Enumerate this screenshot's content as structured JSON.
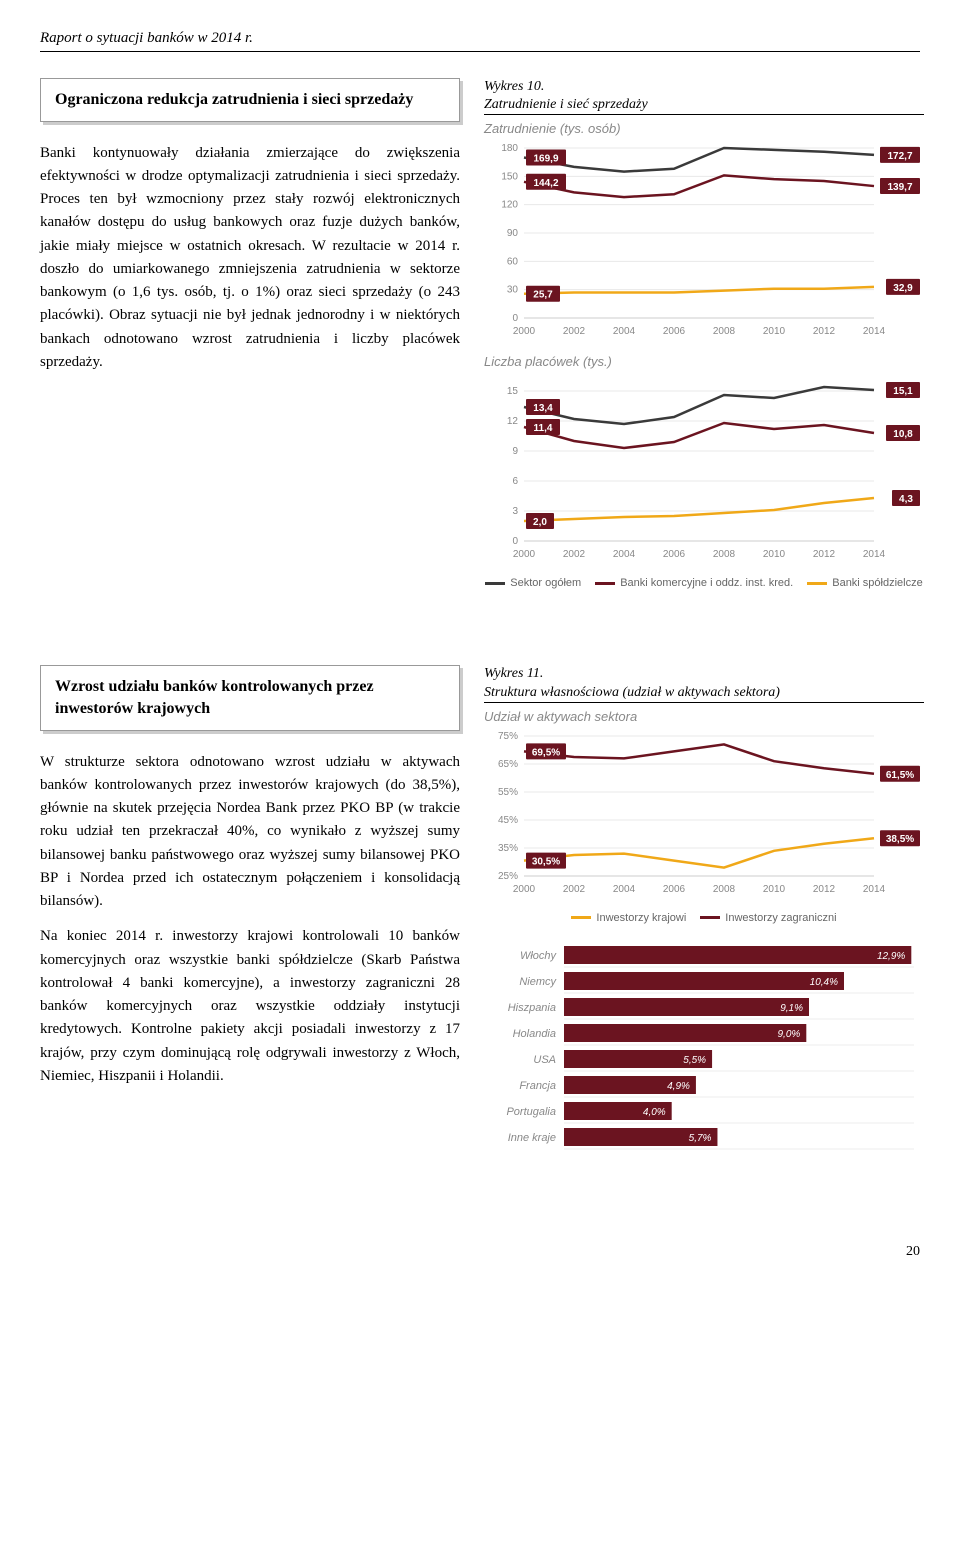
{
  "header": "Raport o sytuacji banków w 2014 r.",
  "page_number": "20",
  "section1": {
    "callout": "Ograniczona redukcja zatrudnienia i sieci sprzedaży",
    "paragraph": "Banki kontynuowały działania zmierzające do zwiększenia efektywności w drodze optymalizacji zatrudnienia i sieci sprzedaży. Proces ten był wzmocniony przez stały rozwój elektronicznych kanałów dostępu do usług bankowych oraz fuzje dużych banków, jakie miały miejsce w ostatnich okresach. W rezultacie w 2014 r. doszło do umiarkowanego zmniejszenia zatrudnienia w sektorze bankowym (o 1,6 tys. osób, tj. o 1%) oraz sieci sprzedaży (o 243 placówki). Obraz sytuacji nie był jednak jednorodny i w niektórych bankach odnotowano wzrost zatrudnienia i liczby placówek sprzedaży."
  },
  "section2": {
    "callout": "Wzrost udziału banków kontrolowanych przez inwestorów krajowych",
    "paragraph1": "W strukturze sektora odnotowano wzrost udziału w aktywach banków kontrolowanych przez inwestorów krajowych (do 38,5%), głównie na skutek przejęcia Nordea Bank przez PKO BP (w trakcie roku udział ten przekraczał 40%, co wynikało z wyższej sumy bilansowej banku państwowego oraz wyższej sumy bilansowej PKO BP i Nordea przed ich ostatecznym połączeniem i konsolidacją bilansów).",
    "paragraph2": "Na koniec 2014 r. inwestorzy krajowi kontrolowali 10 banków komercyjnych oraz wszystkie banki spółdzielcze (Skarb Państwa kontrolował 4 banki komercyjne), a inwestorzy zagraniczni 28 banków komercyjnych oraz wszystkie oddziały instytucji kredytowych. Kontrolne pakiety akcji posiadali inwestorzy z 17 krajów, przy czym dominującą rolę odgrywali inwestorzy z Włoch, Niemiec, Hiszpanii i Holandii."
  },
  "wykres10": {
    "label_line1": "Wykres 10.",
    "label_line2": "Zatrudnienie i sieć sprzedaży",
    "chart_a": {
      "title": "Zatrudnienie (tys. osób)",
      "years": [
        2000,
        2002,
        2004,
        2006,
        2008,
        2010,
        2012,
        2014
      ],
      "yticks": [
        0,
        30,
        60,
        90,
        120,
        150,
        180
      ],
      "series": [
        {
          "name": "Sektor ogółem",
          "color": "#3a3a3a",
          "start_badge": "169,9",
          "end_badge": "172,7",
          "values": [
            169.9,
            160,
            155,
            158,
            180,
            178,
            176,
            172.7
          ]
        },
        {
          "name": "Banki komercyjne i oddz. inst. kred.",
          "color": "#6b1420",
          "start_badge": "144,2",
          "end_badge": "139,7",
          "values": [
            144.2,
            133,
            128,
            131,
            151,
            147,
            145,
            139.7
          ]
        },
        {
          "name": "Banki spółdzielcze",
          "color": "#f0a818",
          "start_badge": "25,7",
          "end_badge": "32,9",
          "values": [
            25.7,
            27,
            27,
            27,
            29,
            31,
            31,
            32.9
          ]
        }
      ]
    },
    "chart_b": {
      "title": "Liczba placówek (tys.)",
      "years": [
        2000,
        2002,
        2004,
        2006,
        2008,
        2010,
        2012,
        2014
      ],
      "yticks": [
        0,
        3,
        6,
        9,
        12,
        15
      ],
      "series": [
        {
          "name": "Sektor ogółem",
          "color": "#3a3a3a",
          "start_badge": "13,4",
          "end_badge": "15,1",
          "values": [
            13.4,
            12.2,
            11.7,
            12.4,
            14.6,
            14.3,
            15.4,
            15.1
          ]
        },
        {
          "name": "Banki komercyjne i oddz. inst. kred.",
          "color": "#6b1420",
          "start_badge": "11,4",
          "end_badge": "10,8",
          "values": [
            11.4,
            10.0,
            9.3,
            9.9,
            11.8,
            11.2,
            11.6,
            10.8
          ]
        },
        {
          "name": "Banki spółdzielcze",
          "color": "#f0a818",
          "start_badge": "2,0",
          "end_badge": "4,3",
          "values": [
            2.0,
            2.2,
            2.4,
            2.5,
            2.8,
            3.1,
            3.8,
            4.3
          ]
        }
      ]
    },
    "legend": [
      {
        "label": "Sektor ogółem",
        "color": "#3a3a3a"
      },
      {
        "label": "Banki komercyjne i oddz. inst. kred.",
        "color": "#6b1420"
      },
      {
        "label": "Banki spółdzielcze",
        "color": "#f0a818"
      }
    ]
  },
  "wykres11": {
    "label_line1": "Wykres 11.",
    "label_line2": "Struktura własnościowa (udział w aktywach sektora)",
    "chart_a": {
      "title": "Udział w aktywach sektora",
      "years": [
        2000,
        2002,
        2004,
        2006,
        2008,
        2010,
        2012,
        2014
      ],
      "yticks": [
        "25%",
        "35%",
        "45%",
        "55%",
        "65%",
        "75%"
      ],
      "ytick_vals": [
        25,
        35,
        45,
        55,
        65,
        75
      ],
      "series": [
        {
          "name": "Inwestorzy zagraniczni",
          "color": "#6b1420",
          "start_badge": "69,5%",
          "end_badge": "61,5%",
          "values": [
            69.5,
            67.5,
            67,
            69.5,
            72,
            66,
            63.5,
            61.5
          ]
        },
        {
          "name": "Inwestorzy krajowi",
          "color": "#f0a818",
          "start_badge": "30,5%",
          "end_badge": "38,5%",
          "values": [
            30.5,
            32.5,
            33,
            30.5,
            28,
            34,
            36.5,
            38.5
          ]
        }
      ]
    },
    "legend_a": [
      {
        "label": "Inwestorzy krajowi",
        "color": "#f0a818"
      },
      {
        "label": "Inwestorzy zagraniczni",
        "color": "#6b1420"
      }
    ],
    "countries": {
      "bar_color": "#6b1420",
      "text_color": "#ffffff",
      "rows": [
        {
          "label": "Włochy",
          "value": 12.9,
          "text": "12,9%"
        },
        {
          "label": "Niemcy",
          "value": 10.4,
          "text": "10,4%"
        },
        {
          "label": "Hiszpania",
          "value": 9.1,
          "text": "9,1%"
        },
        {
          "label": "Holandia",
          "value": 9.0,
          "text": "9,0%"
        },
        {
          "label": "USA",
          "value": 5.5,
          "text": "5,5%"
        },
        {
          "label": "Francja",
          "value": 4.9,
          "text": "4,9%"
        },
        {
          "label": "Portugalia",
          "value": 4.0,
          "text": "4,0%"
        },
        {
          "label": "Inne kraje",
          "value": 5.7,
          "text": "5,7%"
        }
      ]
    }
  }
}
